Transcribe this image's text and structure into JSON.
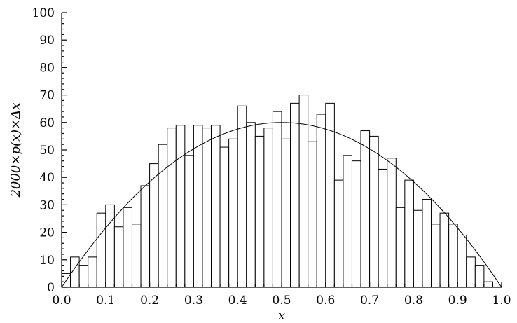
{
  "chart_data": {
    "type": "bar",
    "title": "",
    "xlabel": "x",
    "ylabel": "2000×p(x)×Δx",
    "xlim": [
      0.0,
      1.0
    ],
    "ylim": [
      0,
      100
    ],
    "xticks": [
      "0.0",
      "0.1",
      "0.2",
      "0.3",
      "0.4",
      "0.5",
      "0.6",
      "0.7",
      "0.8",
      "0.9",
      "1.0"
    ],
    "yticks": [
      "0",
      "10",
      "20",
      "30",
      "40",
      "50",
      "60",
      "70",
      "80",
      "90",
      "100"
    ],
    "bin_width": 0.02,
    "bin_starts": [
      0.0,
      0.02,
      0.04,
      0.06,
      0.08,
      0.1,
      0.12,
      0.14,
      0.16,
      0.18,
      0.2,
      0.22,
      0.24,
      0.26,
      0.28,
      0.3,
      0.32,
      0.34,
      0.36,
      0.38,
      0.4,
      0.42,
      0.44,
      0.46,
      0.48,
      0.5,
      0.52,
      0.54,
      0.56,
      0.58,
      0.6,
      0.62,
      0.64,
      0.66,
      0.68,
      0.7,
      0.72,
      0.74,
      0.76,
      0.78,
      0.8,
      0.82,
      0.84,
      0.86,
      0.88,
      0.9,
      0.92,
      0.94,
      0.96,
      0.98
    ],
    "values": [
      5,
      11,
      8,
      11,
      27,
      30,
      22,
      29,
      23,
      37,
      45,
      52,
      58,
      59,
      48,
      59,
      58,
      59,
      51,
      54,
      66,
      60,
      55,
      58,
      64,
      54,
      67,
      70,
      53,
      63,
      67,
      39,
      48,
      46,
      57,
      55,
      43,
      47,
      29,
      39,
      28,
      32,
      23,
      27,
      23,
      19,
      11,
      8,
      2,
      0
    ],
    "series": [
      {
        "type": "line",
        "expression": "240*x*(1-x)",
        "peak": [
          0.5,
          60
        ]
      }
    ],
    "grid": false,
    "legend": "none"
  }
}
